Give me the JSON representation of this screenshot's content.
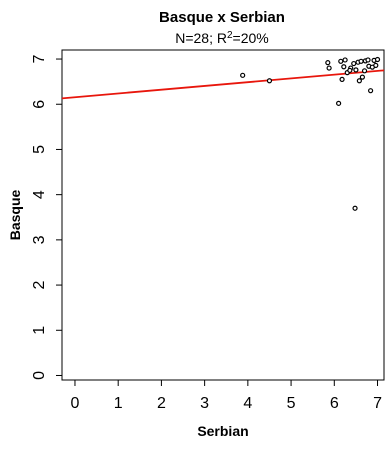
{
  "chart_data": {
    "type": "scatter",
    "title": "Basque x Serbian",
    "subtitle": {
      "prefix": "N=28; R",
      "superscript": "2",
      "suffix": "=20%"
    },
    "xlabel": "Serbian",
    "ylabel": "Basque",
    "xlim": [
      -0.3,
      7.15
    ],
    "ylim": [
      -0.1,
      7.2
    ],
    "xticks": [
      "0",
      "1",
      "2",
      "3",
      "4",
      "5",
      "6",
      "7"
    ],
    "yticks": [
      "0",
      "1",
      "2",
      "3",
      "4",
      "5",
      "6",
      "7"
    ],
    "grid": false,
    "regression_line": {
      "x": [
        -0.3,
        7.15
      ],
      "y": [
        6.13,
        6.75
      ],
      "color": "#e8160c"
    },
    "points": [
      {
        "x": 3.88,
        "y": 6.64
      },
      {
        "x": 4.5,
        "y": 6.52
      },
      {
        "x": 5.85,
        "y": 6.92
      },
      {
        "x": 5.88,
        "y": 6.8
      },
      {
        "x": 6.1,
        "y": 6.02
      },
      {
        "x": 6.15,
        "y": 6.95
      },
      {
        "x": 6.18,
        "y": 6.55
      },
      {
        "x": 6.22,
        "y": 6.83
      },
      {
        "x": 6.25,
        "y": 6.98
      },
      {
        "x": 6.3,
        "y": 6.7
      },
      {
        "x": 6.38,
        "y": 6.8
      },
      {
        "x": 6.45,
        "y": 6.9
      },
      {
        "x": 6.48,
        "y": 3.7
      },
      {
        "x": 6.5,
        "y": 6.76
      },
      {
        "x": 6.55,
        "y": 6.93
      },
      {
        "x": 6.58,
        "y": 6.52
      },
      {
        "x": 6.62,
        "y": 6.95
      },
      {
        "x": 6.65,
        "y": 6.6
      },
      {
        "x": 6.7,
        "y": 6.74
      },
      {
        "x": 6.72,
        "y": 6.96
      },
      {
        "x": 6.78,
        "y": 6.98
      },
      {
        "x": 6.8,
        "y": 6.84
      },
      {
        "x": 6.84,
        "y": 6.3
      },
      {
        "x": 6.88,
        "y": 6.82
      },
      {
        "x": 6.92,
        "y": 6.97
      },
      {
        "x": 6.96,
        "y": 6.86
      },
      {
        "x": 7.0,
        "y": 6.99
      },
      {
        "x": 6.36,
        "y": 6.75
      }
    ],
    "point_color": "#000000"
  }
}
